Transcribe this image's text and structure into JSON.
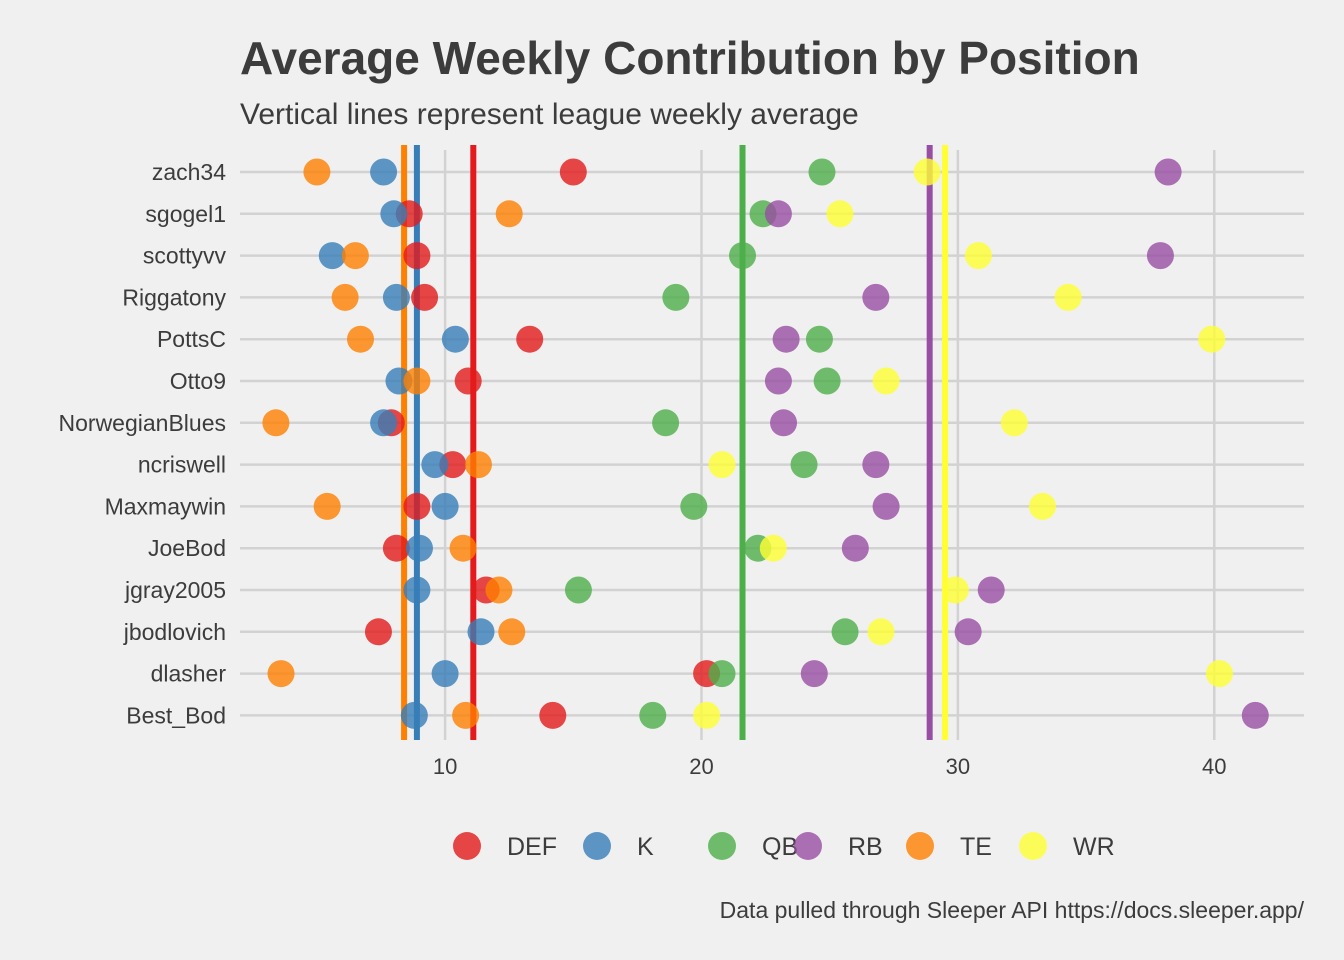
{
  "chart_data": {
    "type": "scatter",
    "title": "Average Weekly Contribution by Position",
    "subtitle": "Vertical lines represent league weekly average",
    "caption": "Data pulled through Sleeper API https://docs.sleeper.app/",
    "xlim": [
      2,
      43.5
    ],
    "x_ticks": [
      10,
      20,
      30,
      40
    ],
    "grid": true,
    "legend_position": "bottom",
    "categories": [
      "zach34",
      "sgogel1",
      "scottyvv",
      "Riggatony",
      "PottsC",
      "Otto9",
      "NorwegianBlues",
      "ncriswell",
      "Maxmaywin",
      "JoeBod",
      "jgray2005",
      "jbodlovich",
      "dlasher",
      "Best_Bod"
    ],
    "series": [
      {
        "name": "DEF",
        "color": "#e41a1c",
        "average": 11.1,
        "values": [
          15.0,
          8.6,
          8.9,
          9.2,
          13.3,
          10.9,
          7.9,
          10.3,
          8.9,
          8.1,
          11.6,
          7.4,
          20.2,
          14.2
        ]
      },
      {
        "name": "K",
        "color": "#377eb8",
        "average": 8.9,
        "values": [
          7.6,
          8.0,
          5.6,
          8.1,
          10.4,
          8.2,
          7.6,
          9.6,
          10.0,
          9.0,
          8.9,
          11.4,
          10.0,
          8.8
        ]
      },
      {
        "name": "QB",
        "color": "#4daf4a",
        "average": 21.6,
        "values": [
          24.7,
          22.4,
          21.6,
          19.0,
          24.6,
          24.9,
          18.6,
          24.0,
          19.7,
          22.2,
          15.2,
          25.6,
          20.8,
          18.1
        ]
      },
      {
        "name": "RB",
        "color": "#984ea3",
        "average": 28.9,
        "values": [
          38.2,
          23.0,
          37.9,
          26.8,
          23.3,
          23.0,
          23.2,
          26.8,
          27.2,
          26.0,
          31.3,
          30.4,
          24.4,
          41.6
        ]
      },
      {
        "name": "TE",
        "color": "#ff7f00",
        "average": 8.4,
        "values": [
          5.0,
          12.5,
          6.5,
          6.1,
          6.7,
          8.9,
          3.4,
          11.3,
          5.4,
          10.7,
          12.1,
          12.6,
          3.6,
          10.8
        ]
      },
      {
        "name": "WR",
        "color": "#ffff33",
        "average": 29.5,
        "values": [
          28.8,
          25.4,
          30.8,
          34.3,
          39.9,
          27.2,
          32.2,
          20.8,
          33.3,
          22.8,
          29.9,
          27.0,
          40.2,
          20.2
        ]
      }
    ]
  }
}
